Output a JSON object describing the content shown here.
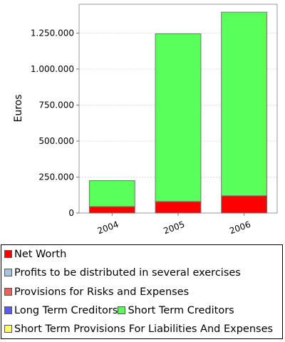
{
  "chart_data": {
    "type": "bar",
    "stacked": true,
    "categories": [
      "2004",
      "2005",
      "2006"
    ],
    "ylabel": "Euros",
    "xlabel": "",
    "ylim": [
      0,
      1450000
    ],
    "yticks": [
      0,
      250000,
      500000,
      750000,
      1000000,
      1250000
    ],
    "ytick_labels": [
      "0",
      "250.000",
      "500.000",
      "750.000",
      "1.000.000",
      "1.250.000"
    ],
    "grid": true,
    "legend_position": "bottom",
    "series": [
      {
        "name": "Net Worth",
        "color": "#ff0000",
        "values": [
          45000,
          80000,
          120000
        ]
      },
      {
        "name": "Profits to be distributed in several exercises",
        "color": "#a6c4e0",
        "values": [
          0,
          0,
          0
        ]
      },
      {
        "name": "Provisions for Risks and Expenses",
        "color": "#ff5959",
        "values": [
          0,
          0,
          0
        ]
      },
      {
        "name": "Long Term Creditors",
        "color": "#5959ff",
        "values": [
          0,
          0,
          0
        ]
      },
      {
        "name": "Short Term Creditors",
        "color": "#59ff59",
        "values": [
          180000,
          1165000,
          1275000
        ]
      },
      {
        "name": "Short Term Provisions For Liabilities And Expenses",
        "color": "#ffff59",
        "values": [
          0,
          0,
          0
        ]
      }
    ]
  },
  "legend_rows": [
    [
      0
    ],
    [
      1
    ],
    [
      2
    ],
    [
      3,
      4
    ],
    [
      5
    ]
  ]
}
